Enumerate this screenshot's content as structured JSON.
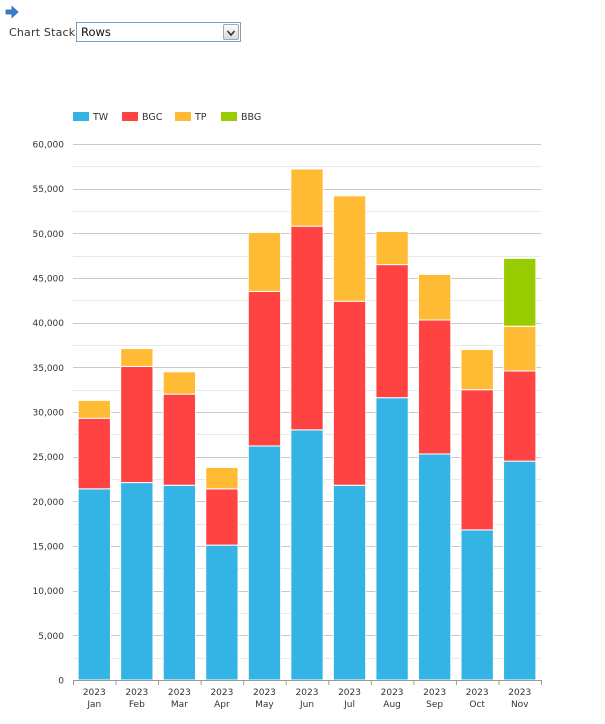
{
  "toolbar": {
    "arrow_icon": "right-arrow-icon",
    "chart_stack_label": "Chart Stack :",
    "chart_stack_selected": "Rows",
    "dropdown_icon": "chevron-down-icon"
  },
  "colors": {
    "TW": "#33b4e5",
    "BGC": "#ff4343",
    "TP": "#ffbb33",
    "BBG": "#99cc00"
  },
  "chart_data": {
    "type": "bar",
    "stacked": true,
    "categories": [
      [
        "2023",
        "Jan"
      ],
      [
        "2023",
        "Feb"
      ],
      [
        "2023",
        "Mar"
      ],
      [
        "2023",
        "Apr"
      ],
      [
        "2023",
        "May"
      ],
      [
        "2023",
        "Jun"
      ],
      [
        "2023",
        "Jul"
      ],
      [
        "2023",
        "Aug"
      ],
      [
        "2023",
        "Sep"
      ],
      [
        "2023",
        "Oct"
      ],
      [
        "2023",
        "Nov"
      ]
    ],
    "series": [
      {
        "name": "TW",
        "values": [
          21400,
          22100,
          21800,
          15100,
          26200,
          28000,
          21800,
          31600,
          25300,
          16800,
          24500
        ]
      },
      {
        "name": "BGC",
        "values": [
          7900,
          13000,
          10200,
          6300,
          17300,
          22800,
          20600,
          14900,
          15000,
          15700,
          10100
        ]
      },
      {
        "name": "TP",
        "values": [
          2000,
          2000,
          2500,
          2400,
          6600,
          6400,
          11800,
          3700,
          5100,
          4500,
          5000
        ]
      },
      {
        "name": "BBG",
        "values": [
          0,
          0,
          0,
          0,
          0,
          0,
          0,
          0,
          0,
          0,
          7600
        ]
      }
    ],
    "yticks": [
      "0",
      "5,000",
      "10,000",
      "15,000",
      "20,000",
      "25,000",
      "30,000",
      "35,000",
      "40,000",
      "45,000",
      "50,000",
      "55,000",
      "60,000"
    ],
    "ylim": [
      0,
      60000
    ],
    "legend_position": "top-left",
    "grid": true
  }
}
